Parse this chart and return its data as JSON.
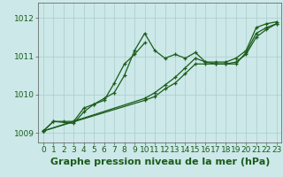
{
  "title": "",
  "xlabel": "Graphe pression niveau de la mer (hPa)",
  "ylabel": "",
  "bg_color": "#cce8e8",
  "grid_color": "#aacccc",
  "line_color": "#1a5c1a",
  "marker_color": "#1a5c1a",
  "xlim": [
    -0.5,
    23.5
  ],
  "ylim": [
    1008.75,
    1012.4
  ],
  "yticks": [
    1009,
    1010,
    1011,
    1012
  ],
  "xticks": [
    0,
    1,
    2,
    3,
    4,
    5,
    6,
    7,
    8,
    9,
    10,
    11,
    12,
    13,
    14,
    15,
    16,
    17,
    18,
    19,
    20,
    21,
    22,
    23
  ],
  "series": [
    [
      1009.05,
      1009.3,
      1009.3,
      1009.3,
      1009.65,
      1009.75,
      1009.9,
      1010.05,
      1010.5,
      1011.15,
      1011.6,
      1011.15,
      1010.95,
      1011.05,
      1010.95,
      1011.1,
      1010.85,
      1010.8,
      1010.8,
      1010.8,
      1011.1,
      1011.6,
      1011.75,
      1011.85
    ],
    [
      1009.05,
      1009.3,
      null,
      1009.25,
      1009.55,
      1009.75,
      1009.85,
      1010.3,
      1010.8,
      1011.05,
      1011.35,
      null,
      null,
      null,
      null,
      null,
      null,
      null,
      null,
      null,
      null,
      null,
      null,
      null
    ],
    [
      1009.05,
      null,
      null,
      null,
      null,
      null,
      null,
      null,
      null,
      null,
      1009.9,
      1010.05,
      1010.25,
      1010.45,
      1010.7,
      1010.95,
      1010.85,
      1010.85,
      1010.85,
      1010.95,
      1011.15,
      1011.75,
      1011.85,
      1011.9
    ],
    [
      1009.05,
      null,
      null,
      null,
      null,
      null,
      null,
      null,
      null,
      null,
      1009.85,
      1009.95,
      1010.15,
      1010.3,
      1010.55,
      1010.8,
      1010.8,
      1010.8,
      1010.8,
      1010.85,
      1011.05,
      1011.5,
      1011.7,
      1011.85
    ]
  ],
  "xlabel_fontsize": 8,
  "tick_fontsize": 6.5
}
